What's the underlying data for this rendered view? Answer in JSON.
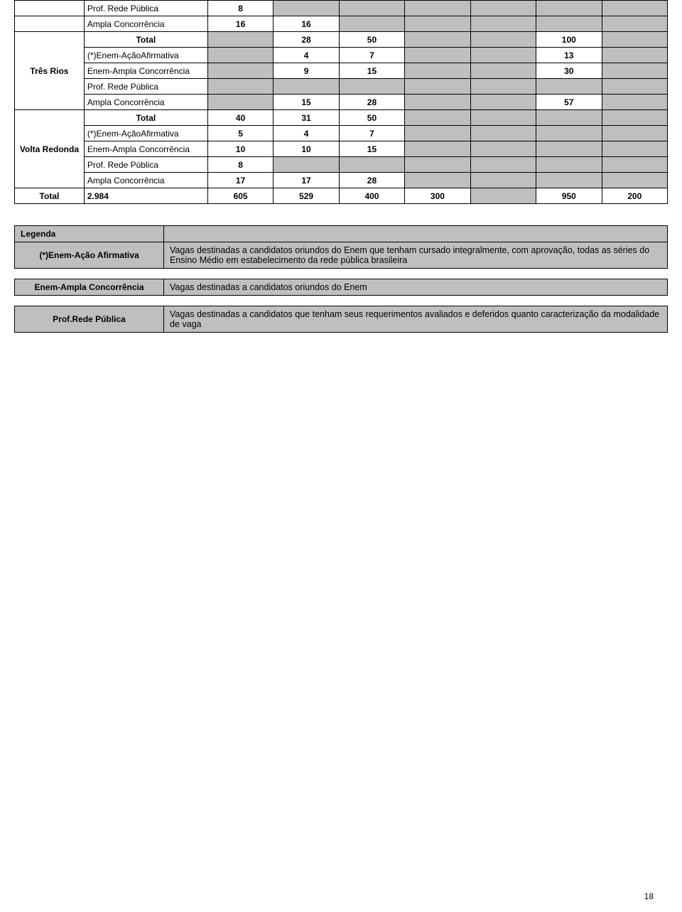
{
  "colors": {
    "grey": "#bfbfbf",
    "border": "#000000",
    "bg": "#ffffff"
  },
  "table": {
    "rows": [
      {
        "loc": "",
        "cat": "Prof. Rede Pública",
        "style": "cat",
        "cells": [
          {
            "v": "8",
            "grey": false
          },
          {
            "v": "",
            "grey": true
          },
          {
            "v": "",
            "grey": true
          },
          {
            "v": "",
            "grey": true
          },
          {
            "v": "",
            "grey": true
          },
          {
            "v": "",
            "grey": true
          },
          {
            "v": "",
            "grey": true
          }
        ]
      },
      {
        "loc": "",
        "cat": "Ampla Concorrência",
        "style": "cat",
        "cells": [
          {
            "v": "16",
            "grey": false
          },
          {
            "v": "16",
            "grey": false
          },
          {
            "v": "",
            "grey": true
          },
          {
            "v": "",
            "grey": true
          },
          {
            "v": "",
            "grey": true
          },
          {
            "v": "",
            "grey": true
          },
          {
            "v": "",
            "grey": true
          }
        ]
      },
      {
        "loc": "Três Rios",
        "locSpan": 5,
        "cat": "Total",
        "style": "catBold",
        "cells": [
          {
            "v": "",
            "grey": true,
            "big": true
          },
          {
            "v": "28",
            "grey": false,
            "big": true
          },
          {
            "v": "50",
            "grey": false,
            "big": true
          },
          {
            "v": "",
            "grey": true,
            "big": true
          },
          {
            "v": "",
            "grey": true,
            "big": true
          },
          {
            "v": "100",
            "grey": false,
            "big": true
          },
          {
            "v": "",
            "grey": true,
            "big": true
          }
        ]
      },
      {
        "cat": "(*)Enem-AçãoAfirmativa",
        "style": "cat",
        "cells": [
          {
            "v": "",
            "grey": true
          },
          {
            "v": "4",
            "grey": false
          },
          {
            "v": "7",
            "grey": false
          },
          {
            "v": "",
            "grey": true
          },
          {
            "v": "",
            "grey": true
          },
          {
            "v": "13",
            "grey": false
          },
          {
            "v": "",
            "grey": true
          }
        ]
      },
      {
        "cat": "Enem-Ampla Concorrência",
        "style": "cat",
        "cells": [
          {
            "v": "",
            "grey": true
          },
          {
            "v": "9",
            "grey": false
          },
          {
            "v": "15",
            "grey": false
          },
          {
            "v": "",
            "grey": true
          },
          {
            "v": "",
            "grey": true
          },
          {
            "v": "30",
            "grey": false
          },
          {
            "v": "",
            "grey": true
          }
        ]
      },
      {
        "cat": "Prof. Rede Pública",
        "style": "cat",
        "cells": [
          {
            "v": "",
            "grey": true
          },
          {
            "v": "",
            "grey": true
          },
          {
            "v": "",
            "grey": true
          },
          {
            "v": "",
            "grey": true
          },
          {
            "v": "",
            "grey": true
          },
          {
            "v": "",
            "grey": true
          },
          {
            "v": "",
            "grey": true
          }
        ]
      },
      {
        "cat": "Ampla Concorrência",
        "style": "cat",
        "cells": [
          {
            "v": "",
            "grey": true
          },
          {
            "v": "15",
            "grey": false
          },
          {
            "v": "28",
            "grey": false
          },
          {
            "v": "",
            "grey": true
          },
          {
            "v": "",
            "grey": true
          },
          {
            "v": "57",
            "grey": false
          },
          {
            "v": "",
            "grey": true
          }
        ]
      },
      {
        "loc": "Volta Redonda",
        "locSpan": 5,
        "cat": "Total",
        "style": "catBold",
        "cells": [
          {
            "v": "40",
            "grey": false,
            "big": true
          },
          {
            "v": "31",
            "grey": false,
            "big": true
          },
          {
            "v": "50",
            "grey": false,
            "big": true
          },
          {
            "v": "",
            "grey": true,
            "big": true
          },
          {
            "v": "",
            "grey": true,
            "big": true
          },
          {
            "v": "",
            "grey": true,
            "big": true
          },
          {
            "v": "",
            "grey": true,
            "big": true
          }
        ]
      },
      {
        "cat": "(*)Enem-AçãoAfirmativa",
        "style": "cat",
        "cells": [
          {
            "v": "5",
            "grey": false
          },
          {
            "v": "4",
            "grey": false
          },
          {
            "v": "7",
            "grey": false
          },
          {
            "v": "",
            "grey": true
          },
          {
            "v": "",
            "grey": true
          },
          {
            "v": "",
            "grey": true
          },
          {
            "v": "",
            "grey": true
          }
        ]
      },
      {
        "cat": "Enem-Ampla Concorrência",
        "style": "cat",
        "cells": [
          {
            "v": "10",
            "grey": false
          },
          {
            "v": "10",
            "grey": false
          },
          {
            "v": "15",
            "grey": false
          },
          {
            "v": "",
            "grey": true
          },
          {
            "v": "",
            "grey": true
          },
          {
            "v": "",
            "grey": true
          },
          {
            "v": "",
            "grey": true
          }
        ]
      },
      {
        "cat": "Prof. Rede Pública",
        "style": "cat",
        "cells": [
          {
            "v": "8",
            "grey": false
          },
          {
            "v": "",
            "grey": true
          },
          {
            "v": "",
            "grey": true
          },
          {
            "v": "",
            "grey": true
          },
          {
            "v": "",
            "grey": true
          },
          {
            "v": "",
            "grey": true
          },
          {
            "v": "",
            "grey": true
          }
        ]
      },
      {
        "cat": "Ampla Concorrência",
        "style": "cat",
        "cells": [
          {
            "v": "17",
            "grey": false
          },
          {
            "v": "17",
            "grey": false
          },
          {
            "v": "28",
            "grey": false
          },
          {
            "v": "",
            "grey": true
          },
          {
            "v": "",
            "grey": true
          },
          {
            "v": "",
            "grey": true
          },
          {
            "v": "",
            "grey": true
          }
        ]
      },
      {
        "loc": "Total",
        "locStyle": "totalLabel",
        "cat": "2.984",
        "style": "totalCat",
        "cells": [
          {
            "v": "605",
            "grey": false,
            "big": true
          },
          {
            "v": "529",
            "grey": false,
            "big": true
          },
          {
            "v": "400",
            "grey": false,
            "big": true
          },
          {
            "v": "300",
            "grey": false,
            "big": true
          },
          {
            "v": "",
            "grey": true,
            "big": true
          },
          {
            "v": "950",
            "grey": false,
            "big": true
          },
          {
            "v": "200",
            "grey": false,
            "big": true
          }
        ]
      }
    ]
  },
  "legend": {
    "title": "Legenda",
    "items": [
      {
        "key": "(*)Enem-Ação Afirmativa",
        "desc": "Vagas destinadas a candidatos oriundos do Enem que tenham cursado integralmente, com aprovação, todas as séries do Ensino Médio em estabelecimento da rede pública brasileira"
      },
      {
        "key": "Enem-Ampla Concorrência",
        "desc": "Vagas destinadas a candidatos oriundos do Enem"
      },
      {
        "key": "Prof.Rede Pública",
        "desc": "Vagas destinadas a candidatos que tenham seus requerimentos avaliados e deferidos quanto caracterização da modalidade de vaga"
      }
    ]
  },
  "pageNumber": "18"
}
